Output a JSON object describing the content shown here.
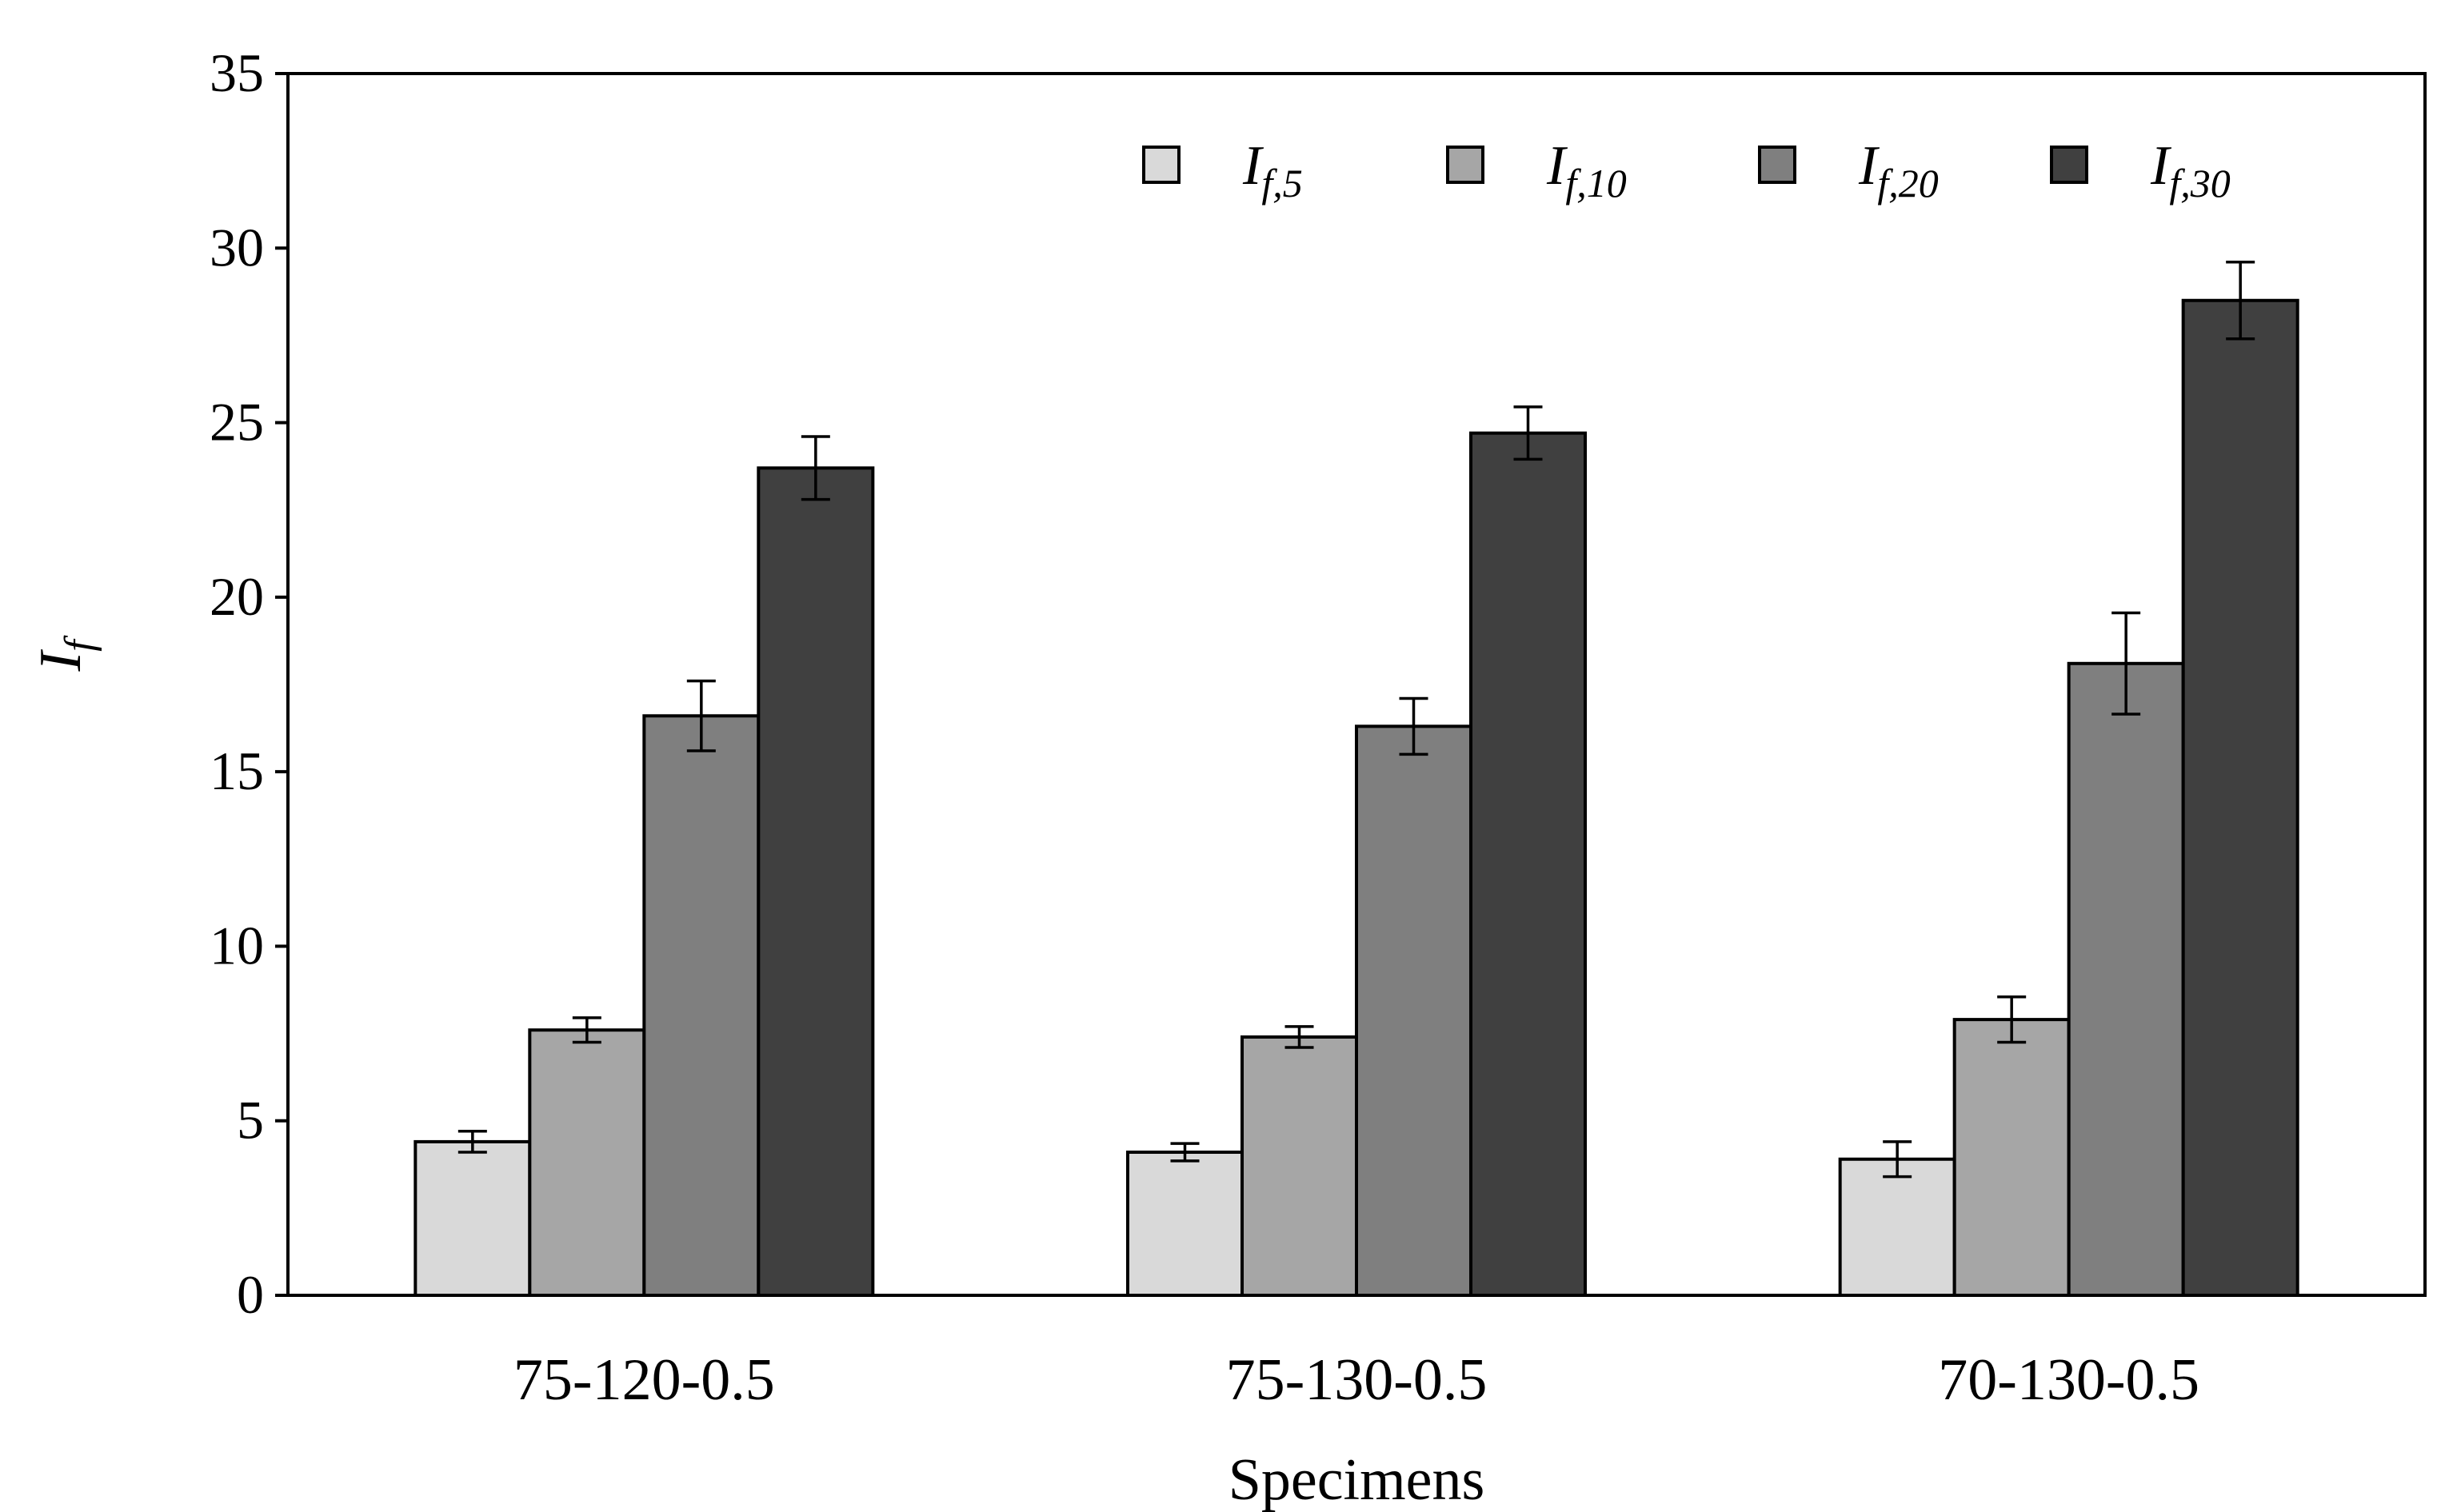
{
  "chart_data": {
    "type": "bar",
    "xlabel": "Specimens",
    "ylabel": "I",
    "ylabel_subscript": "f",
    "ylim": [
      0,
      35
    ],
    "yticks": [
      0,
      5,
      10,
      15,
      20,
      25,
      30,
      35
    ],
    "categories": [
      "75-120-0.5",
      "75-130-0.5",
      "70-130-0.5"
    ],
    "legend_position": "top-right",
    "grid": false,
    "error_bars": true,
    "series": [
      {
        "name": "I",
        "subscript": "f,5",
        "color": "#d9d9d9",
        "values": [
          4.4,
          4.1,
          3.9
        ],
        "errors": [
          0.3,
          0.25,
          0.5
        ]
      },
      {
        "name": "I",
        "subscript": "f,10",
        "color": "#a6a6a6",
        "values": [
          7.6,
          7.4,
          7.9
        ],
        "errors": [
          0.35,
          0.3,
          0.65
        ]
      },
      {
        "name": "I",
        "subscript": "f,20",
        "color": "#7f7f7f",
        "values": [
          16.6,
          16.3,
          18.1
        ],
        "errors": [
          1.0,
          0.8,
          1.45
        ]
      },
      {
        "name": "I",
        "subscript": "f,30",
        "color": "#404040",
        "values": [
          23.7,
          24.7,
          28.5
        ],
        "errors": [
          0.9,
          0.75,
          1.1
        ]
      }
    ]
  }
}
